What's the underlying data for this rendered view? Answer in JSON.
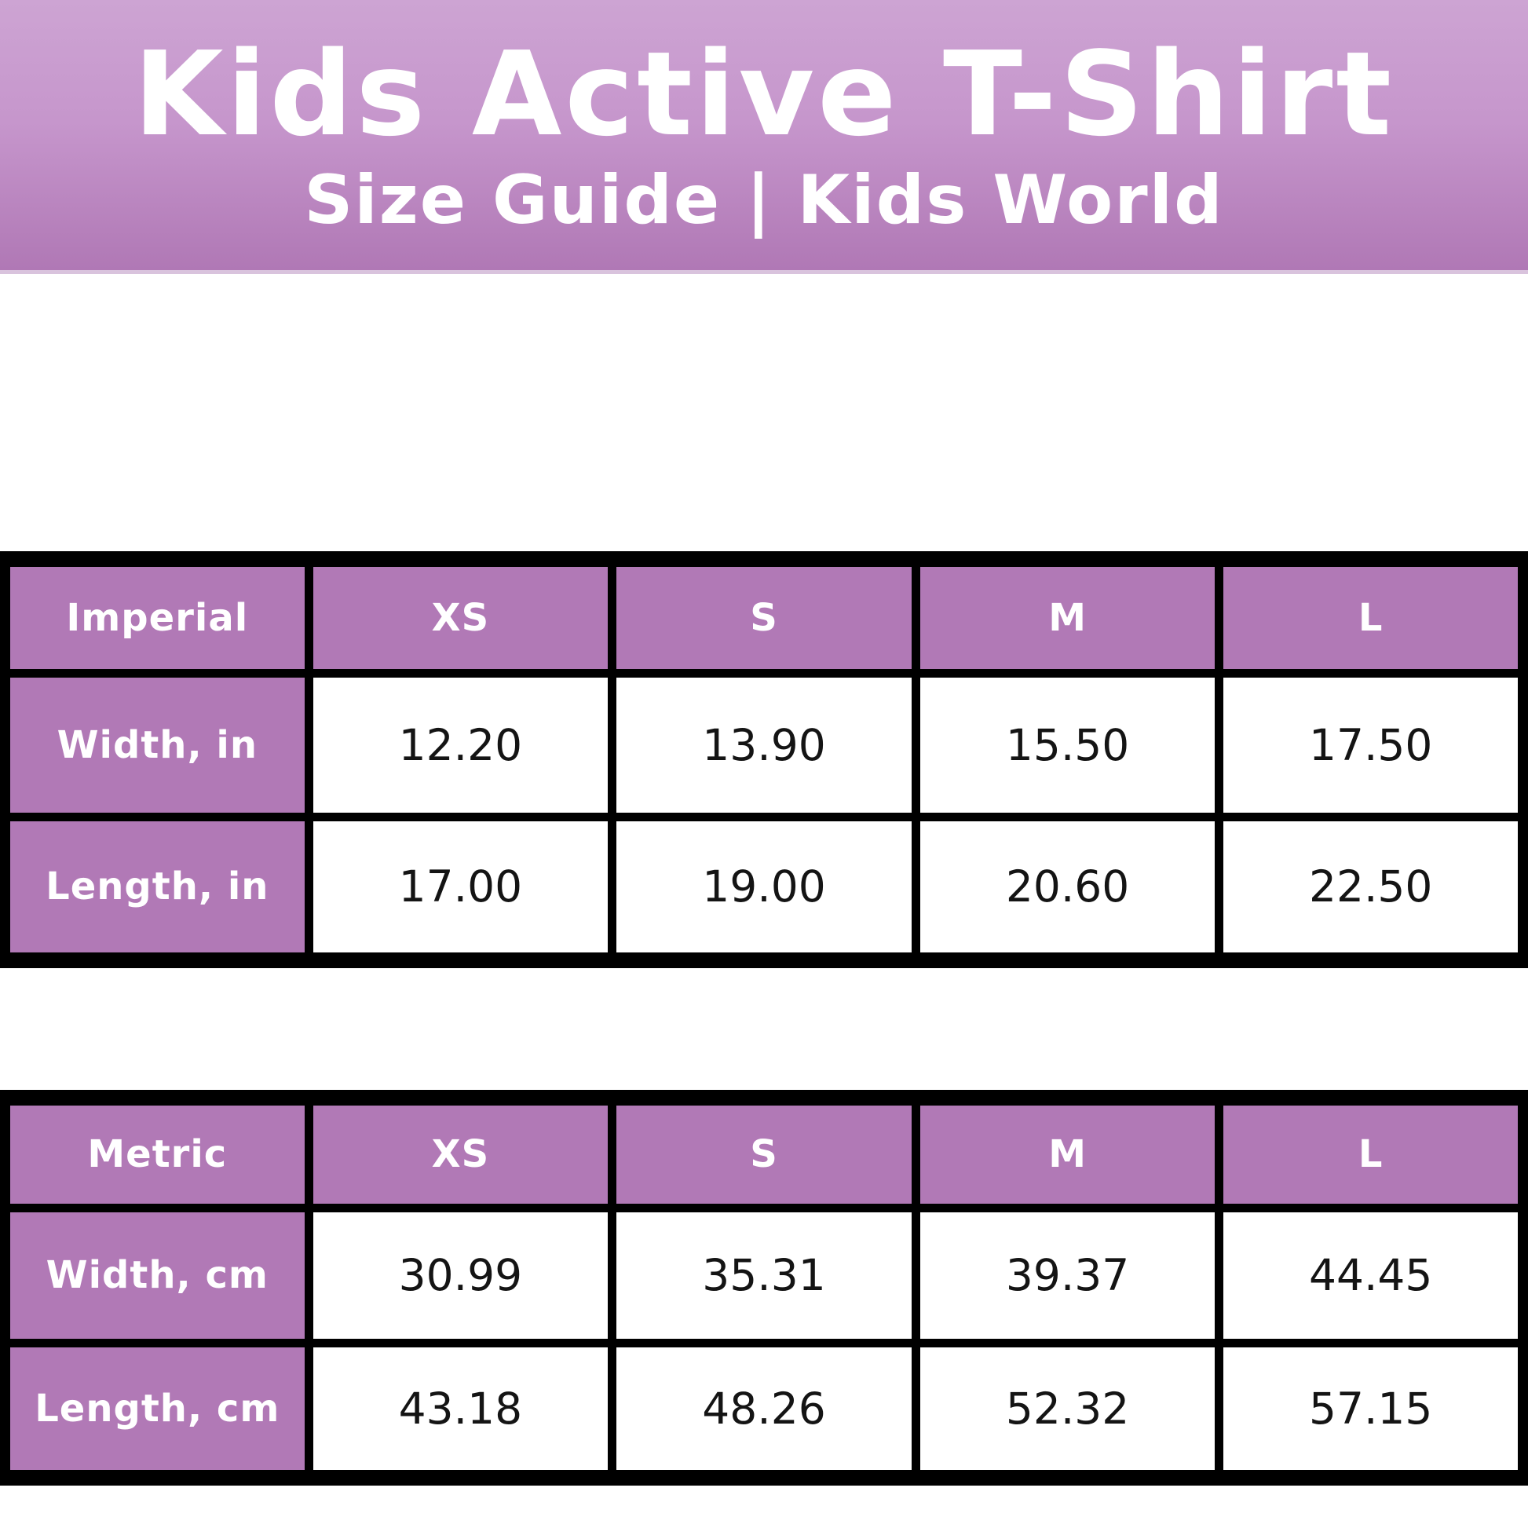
{
  "header": {
    "title": "Kids Active T-Shirt",
    "subtitle": "Size Guide | Kids World"
  },
  "tables": [
    {
      "unit_label": "Imperial",
      "columns": [
        "XS",
        "S",
        "M",
        "L"
      ],
      "rows": [
        {
          "label": "Width, in",
          "values": [
            "12.20",
            "13.90",
            "15.50",
            "17.50"
          ]
        },
        {
          "label": "Length, in",
          "values": [
            "17.00",
            "19.00",
            "20.60",
            "22.50"
          ]
        }
      ]
    },
    {
      "unit_label": "Metric",
      "columns": [
        "XS",
        "S",
        "M",
        "L"
      ],
      "rows": [
        {
          "label": "Width, cm",
          "values": [
            "30.99",
            "35.31",
            "39.37",
            "44.45"
          ]
        },
        {
          "label": "Length, cm",
          "values": [
            "43.18",
            "48.26",
            "52.32",
            "57.15"
          ]
        }
      ]
    }
  ],
  "colors": {
    "banner_gradient_top": "#cda4d3",
    "banner_gradient_bottom": "#b078b5",
    "table_cell_purple": "#b179b6",
    "table_border": "#000000",
    "light_text": "#ffffff",
    "dark_text": "#141414"
  }
}
